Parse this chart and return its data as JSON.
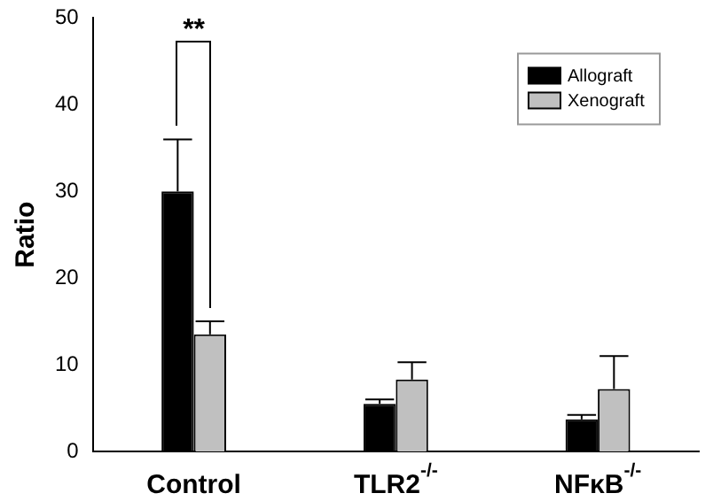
{
  "chart_data": {
    "type": "bar",
    "ylabel": "Ratio",
    "categories": [
      "Control",
      "TLR2$^{-/-}$",
      "NFκB$^{-/-}$"
    ],
    "series": [
      {
        "name": "Allograft",
        "color": "#000000",
        "values": [
          30,
          5.5,
          3.7
        ],
        "errors": [
          [
            30,
            36
          ],
          [
            5.5,
            6
          ],
          [
            3.7,
            4.2
          ]
        ]
      },
      {
        "name": "Xenograft",
        "color": "#c0c0c0",
        "values": [
          13.5,
          8.3,
          7.2
        ],
        "errors": [
          [
            13.5,
            15
          ],
          [
            8.3,
            10.3
          ],
          [
            7.2,
            11
          ]
        ]
      }
    ],
    "ylim": [
      0,
      50
    ],
    "yticks": [
      0,
      10,
      20,
      30,
      40,
      50
    ],
    "grid": false,
    "legend": "top right",
    "annotations": [
      "**"
    ]
  }
}
